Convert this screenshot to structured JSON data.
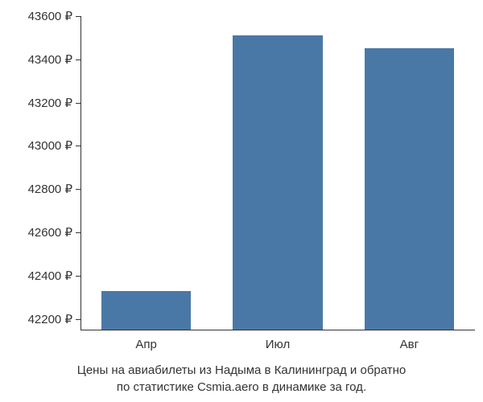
{
  "chart": {
    "type": "bar",
    "categories": [
      "Апр",
      "Июл",
      "Авг"
    ],
    "values": [
      42330,
      43510,
      43450
    ],
    "bar_color": "#4a78a6",
    "y_ticks": [
      42200,
      42400,
      42600,
      42800,
      43000,
      43200,
      43400,
      43600
    ],
    "y_tick_labels": [
      "42200 ₽",
      "42400 ₽",
      "42600 ₽",
      "42800 ₽",
      "43000 ₽",
      "43200 ₽",
      "43400 ₽",
      "43600 ₽"
    ],
    "y_min": 42150,
    "y_max": 43600,
    "background_color": "#ffffff",
    "axis_color": "#333333",
    "text_color": "#333333",
    "bar_width_ratio": 0.68,
    "caption_line1": "Цены на авиабилеты из Надыма в Калининград и обратно",
    "caption_line2": "по статистике Csmia.aero в динамике за год."
  }
}
